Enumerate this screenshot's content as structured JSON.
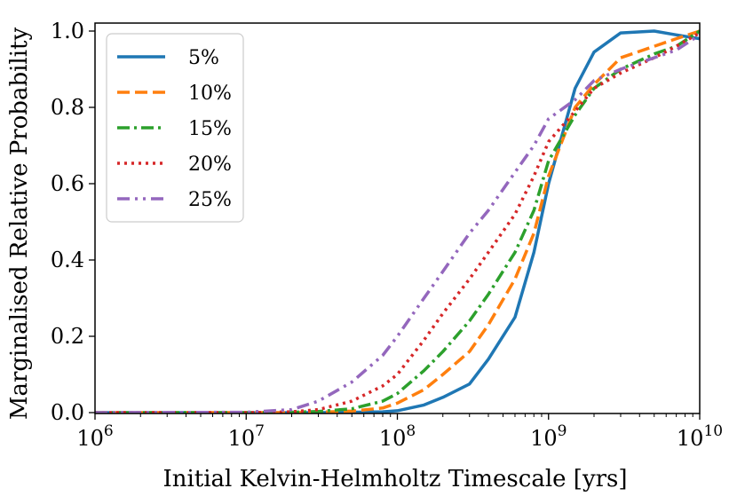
{
  "chart_data": {
    "type": "line",
    "xscale": "log",
    "xlim": [
      1000000,
      10000000000
    ],
    "ylim": [
      0.0,
      1.0
    ],
    "xlabel": "Initial Kelvin-Helmholtz Timescale [yrs]",
    "ylabel": "Marginalised Relative Probability",
    "x_ticks": [
      {
        "value": 1000000,
        "base": "10",
        "exp": "6"
      },
      {
        "value": 10000000,
        "base": "10",
        "exp": "7"
      },
      {
        "value": 100000000,
        "base": "10",
        "exp": "8"
      },
      {
        "value": 1000000000,
        "base": "10",
        "exp": "9"
      },
      {
        "value": 10000000000,
        "base": "10",
        "exp": "10"
      }
    ],
    "y_ticks": [
      {
        "value": 0.0,
        "label": "0.0"
      },
      {
        "value": 0.2,
        "label": "0.2"
      },
      {
        "value": 0.4,
        "label": "0.4"
      },
      {
        "value": 0.6,
        "label": "0.6"
      },
      {
        "value": 0.8,
        "label": "0.8"
      },
      {
        "value": 1.0,
        "label": "1.0"
      }
    ],
    "legend_position": "top-left",
    "x": [
      1000000,
      10000000,
      20000000,
      30000000,
      50000000,
      80000000,
      100000000,
      150000000,
      200000000,
      300000000,
      400000000,
      600000000,
      800000000,
      1000000000,
      1500000000,
      2000000000,
      3000000000,
      5000000000,
      7000000000,
      10000000000
    ],
    "series": [
      {
        "name": "5%",
        "color": "#1f77b4",
        "dash": "solid",
        "values": [
          0.0,
          0.0,
          0.0,
          0.0,
          0.001,
          0.002,
          0.005,
          0.02,
          0.04,
          0.075,
          0.14,
          0.25,
          0.42,
          0.6,
          0.85,
          0.945,
          0.995,
          1.0,
          0.99,
          0.98
        ]
      },
      {
        "name": "10%",
        "color": "#ff7f0e",
        "dash": "dashed",
        "values": [
          0.0,
          0.0,
          0.0,
          0.001,
          0.004,
          0.012,
          0.025,
          0.06,
          0.1,
          0.16,
          0.23,
          0.35,
          0.47,
          0.62,
          0.8,
          0.86,
          0.93,
          0.96,
          0.98,
          1.0
        ]
      },
      {
        "name": "15%",
        "color": "#2ca02c",
        "dash": "dashdot",
        "values": [
          0.0,
          0.0,
          0.001,
          0.003,
          0.01,
          0.03,
          0.05,
          0.11,
          0.16,
          0.24,
          0.31,
          0.42,
          0.53,
          0.66,
          0.78,
          0.85,
          0.9,
          0.94,
          0.96,
          1.0
        ]
      },
      {
        "name": "20%",
        "color": "#d62728",
        "dash": "dotted",
        "values": [
          0.0,
          0.0,
          0.002,
          0.008,
          0.03,
          0.07,
          0.1,
          0.19,
          0.26,
          0.35,
          0.42,
          0.52,
          0.62,
          0.71,
          0.79,
          0.85,
          0.89,
          0.93,
          0.96,
          0.995
        ]
      },
      {
        "name": "25%",
        "color": "#9467bd",
        "dash": "dashdotdot",
        "values": [
          0.0,
          0.001,
          0.008,
          0.03,
          0.08,
          0.15,
          0.2,
          0.3,
          0.37,
          0.47,
          0.53,
          0.63,
          0.7,
          0.77,
          0.82,
          0.87,
          0.9,
          0.93,
          0.95,
          0.99
        ]
      }
    ]
  }
}
